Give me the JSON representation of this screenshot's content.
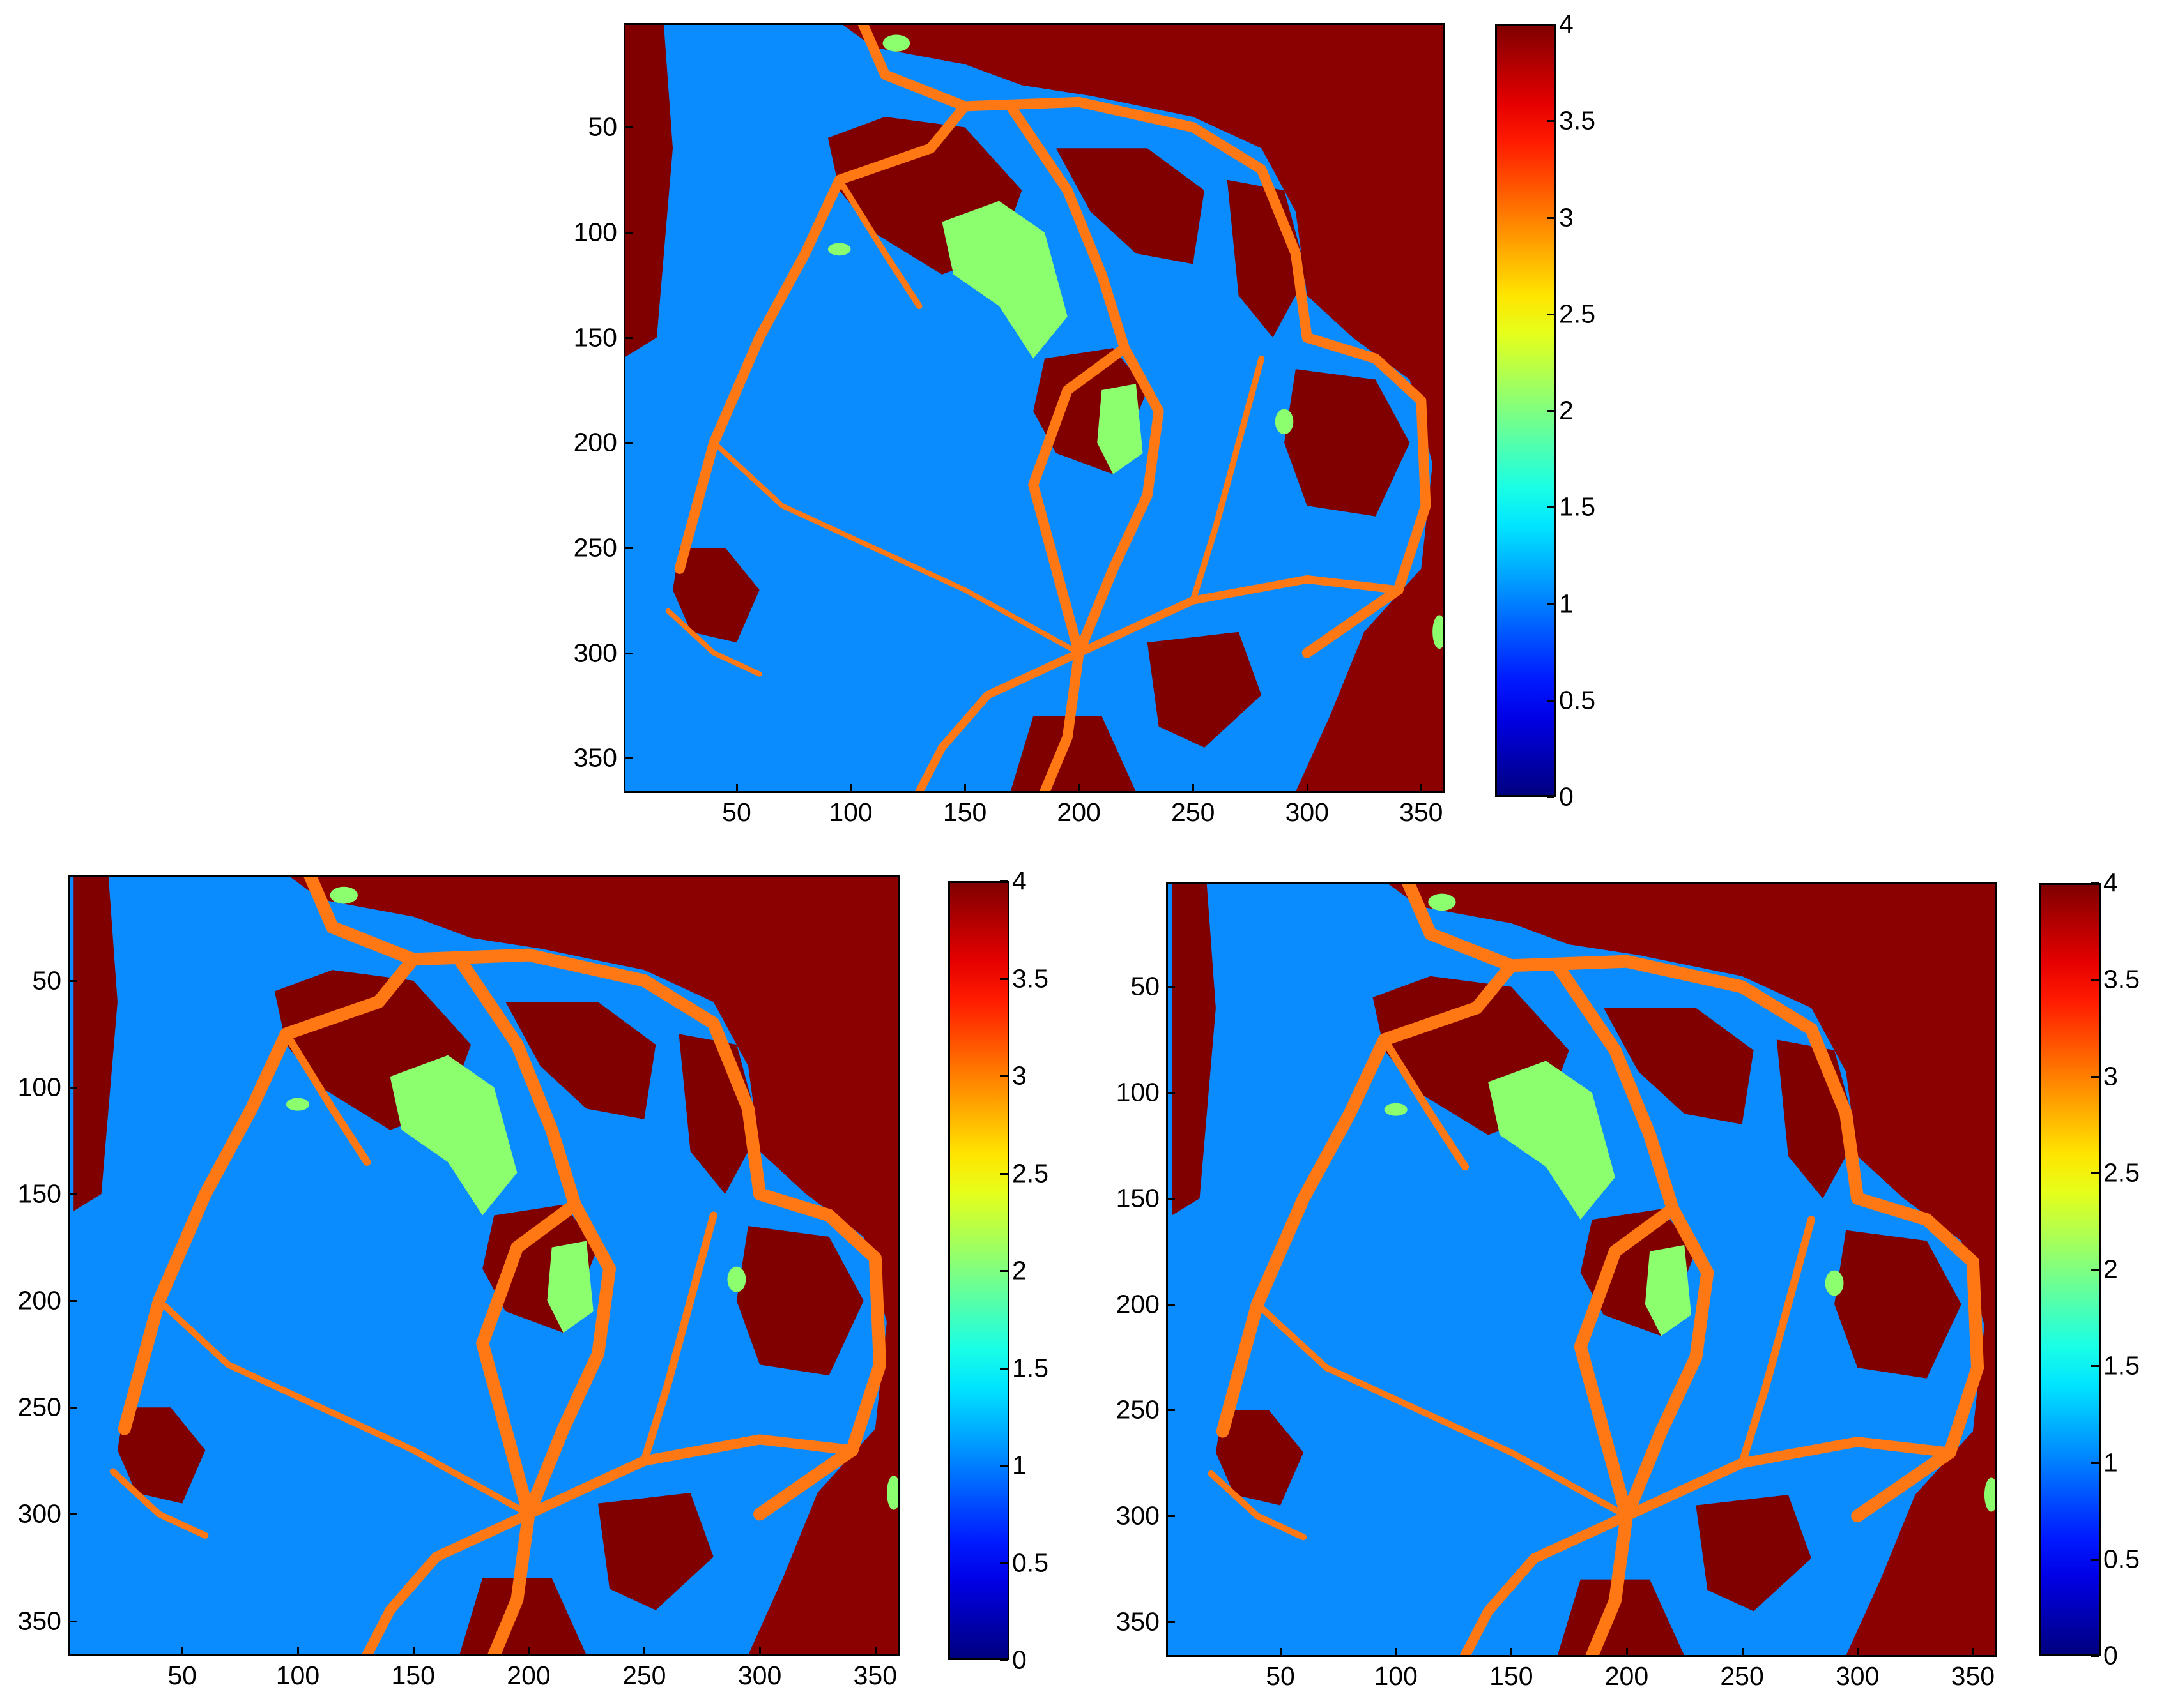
{
  "chart_data": [
    {
      "type": "heatmap",
      "panel": "top",
      "title": "",
      "xlabel": "",
      "ylabel": "",
      "xlim": [
        1,
        360
      ],
      "ylim": [
        1,
        366
      ],
      "y_reversed": true,
      "x_ticks": [
        "50",
        "100",
        "150",
        "200",
        "250",
        "300",
        "350"
      ],
      "y_ticks": [
        "50",
        "100",
        "150",
        "200",
        "250",
        "300",
        "350"
      ],
      "colorbar": {
        "colormap": "jet",
        "range": [
          0,
          4
        ],
        "ticks": [
          "0",
          "0.5",
          "1",
          "1.5",
          "2",
          "2.5",
          "3",
          "3.5",
          "4"
        ]
      },
      "classes": [
        {
          "value": 1,
          "color": "#0a8cff"
        },
        {
          "value": 2,
          "color": "#8cff6e"
        },
        {
          "value": 3,
          "color": "#ff7814"
        },
        {
          "value": 4,
          "color": "#800000"
        }
      ]
    },
    {
      "type": "heatmap",
      "panel": "bottom-left",
      "title": "",
      "xlabel": "",
      "ylabel": "",
      "xlim": [
        1,
        360
      ],
      "ylim": [
        1,
        366
      ],
      "y_reversed": true,
      "x_ticks": [
        "50",
        "100",
        "150",
        "200",
        "250",
        "300",
        "350"
      ],
      "y_ticks": [
        "50",
        "100",
        "150",
        "200",
        "250",
        "300",
        "350"
      ],
      "colorbar": {
        "colormap": "jet",
        "range": [
          0,
          4
        ],
        "ticks": [
          "0",
          "0.5",
          "1",
          "1.5",
          "2",
          "2.5",
          "3",
          "3.5",
          "4"
        ]
      },
      "classes": [
        {
          "value": 1,
          "color": "#0a8cff"
        },
        {
          "value": 2,
          "color": "#8cff6e"
        },
        {
          "value": 3,
          "color": "#ff7814"
        },
        {
          "value": 4,
          "color": "#800000"
        }
      ]
    },
    {
      "type": "heatmap",
      "panel": "bottom-right",
      "title": "",
      "xlabel": "",
      "ylabel": "",
      "xlim": [
        1,
        360
      ],
      "ylim": [
        1,
        366
      ],
      "y_reversed": true,
      "x_ticks": [
        "50",
        "100",
        "150",
        "200",
        "250",
        "300",
        "350"
      ],
      "y_ticks": [
        "50",
        "100",
        "150",
        "200",
        "250",
        "300",
        "350"
      ],
      "colorbar": {
        "colormap": "jet",
        "range": [
          0,
          4
        ],
        "ticks": [
          "0",
          "0.5",
          "1",
          "1.5",
          "2",
          "2.5",
          "3",
          "3.5",
          "4"
        ]
      },
      "classes": [
        {
          "value": 1,
          "color": "#0a8cff"
        },
        {
          "value": 2,
          "color": "#8cff6e"
        },
        {
          "value": 3,
          "color": "#ff7814"
        },
        {
          "value": 4,
          "color": "#800000"
        }
      ]
    }
  ]
}
